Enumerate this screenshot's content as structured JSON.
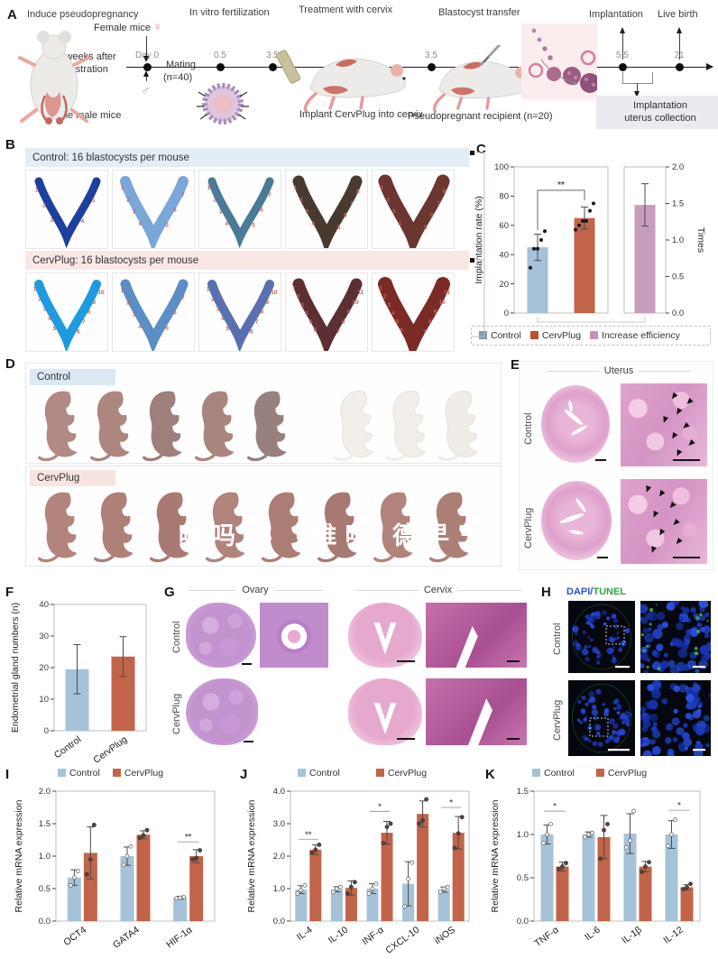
{
  "panels": {
    "a": "A",
    "b": "B",
    "c": "C",
    "d": "D",
    "e": "E",
    "f": "F",
    "g": "G",
    "h": "H",
    "i": "I",
    "j": "J",
    "k": "K"
  },
  "panel_a": {
    "stages": [
      "Induce pseudopregnancy",
      "In vitro fertilization",
      "Treatment with cervix",
      "Blastocyst transfer",
      "Implantation",
      "Live birth"
    ],
    "timepoints": [
      "Day 0",
      "0.5",
      "3.5",
      "3.5",
      "5.5",
      "21"
    ],
    "female_mice": "Female mice",
    "female_symbol": "♀",
    "male_symbol": "♂",
    "castration_line1": "2 weeks after",
    "castration_line2": "castration",
    "sterile_male": "Sterile male mice",
    "mating_line1": "Mating",
    "mating_line2": "(n=40)",
    "implant_caption": "Implant CervPlug into cervix",
    "recipient_caption": "Pseudopregnant recipient (n=20)",
    "collection_line1": "Implantation",
    "collection_line2": "uterus collection"
  },
  "panel_b": {
    "control_header": "Control: 16 blastocysts per mouse",
    "cervplug_header": "CervPlug: 16 blastocysts per mouse",
    "number_color": "#c0635a",
    "control_uteri": [
      {
        "color": "#1d3f9e",
        "width": 9,
        "count": 5
      },
      {
        "color": "#7aa7d8",
        "width": 12,
        "count": 7
      },
      {
        "color": "#4a7a96",
        "width": 9,
        "count": 7
      },
      {
        "color": "#493a30",
        "width": 13,
        "count": 8
      },
      {
        "color": "#6b3530",
        "width": 15,
        "count": 8
      }
    ],
    "cervplug_uteri": [
      {
        "color": "#1e9bdf",
        "width": 10,
        "count": 10
      },
      {
        "color": "#5b8ec4",
        "width": 11,
        "count": 7
      },
      {
        "color": "#5a6fb0",
        "width": 10,
        "count": 10
      },
      {
        "color": "#5c2f34",
        "width": 13,
        "count": 11
      },
      {
        "color": "#7c2a26",
        "width": 16,
        "count": 11
      }
    ]
  },
  "panel_d": {
    "control_label": "Control",
    "cervplug_label": "CervPlug",
    "watermark": "唯吗 5（唯吗 德早三",
    "control_pups": [
      "#b18a84",
      "#ac867f",
      "#9e7f7c",
      "#a8867f",
      "#97807e",
      "#f2eeea",
      "#f1ede9",
      "#f0ece8"
    ],
    "control_faded_count": 3,
    "cervplug_pups": [
      "#b2847c",
      "#ad8078",
      "#a87a73",
      "#b0837b",
      "#aa7d75",
      "#a77972",
      "#b1837b",
      "#ab7e76"
    ]
  },
  "panel_e": {
    "title": "Uterus",
    "control_label": "Control",
    "cervplug_label": "CervPlug"
  },
  "panel_g": {
    "ovary_title": "Ovary",
    "cervix_title": "Cervix",
    "control_label": "Control",
    "cervplug_label": "CervPlug"
  },
  "panel_h": {
    "dapi": "DAPI",
    "slash": "/",
    "tunel": "TUNEL",
    "dapi_color": "#2b50d8",
    "tunel_color": "#2fa742",
    "control_label": "Control",
    "cervplug_label": "CervPlug"
  },
  "chart_data": [
    {
      "id": "C",
      "type": "bar",
      "left": {
        "ylabel": "Implantation rate (%)",
        "ylim": [
          0,
          100
        ],
        "yticks": [
          0,
          20,
          40,
          60,
          80,
          100
        ],
        "ytick_labels": [
          "0",
          "20",
          "40",
          "60",
          "80",
          "100"
        ],
        "categories": [
          "Control",
          "CervPlug"
        ],
        "values": [
          45,
          65
        ],
        "errors": [
          9,
          7.5
        ],
        "dots": [
          [
            31,
            44,
            44,
            50,
            56
          ],
          [
            57,
            60,
            63,
            63,
            70,
            75
          ]
        ],
        "colors": [
          "#a6c2d8",
          "#c26449"
        ],
        "sig": {
          "text": "**",
          "y": 84,
          "drop1": 57,
          "drop2": 77
        }
      },
      "right": {
        "ylabel": "Times",
        "ylim": [
          0,
          2
        ],
        "yticks": [
          0,
          0.5,
          1,
          1.5,
          2
        ],
        "ytick_labels": [
          "0.0",
          "0.5",
          "1.0",
          "1.5",
          "2.0"
        ],
        "categories": [
          "Increase efficiency"
        ],
        "values": [
          1.48
        ],
        "errors": [
          0.29
        ],
        "colors": [
          "#c79dbe"
        ]
      },
      "legend": [
        {
          "label": "Control",
          "color": "#7d9cb5"
        },
        {
          "label": "CervPlug",
          "color": "#bb4f33"
        },
        {
          "label": "Increase efficiency",
          "color": "#c491b7"
        }
      ]
    },
    {
      "id": "F",
      "type": "bar",
      "ylabel": "Endometrial gland numbers (n)",
      "ylim": [
        0,
        40
      ],
      "yticks": [
        0,
        10,
        20,
        30,
        40
      ],
      "ytick_labels": [
        "0",
        "10",
        "20",
        "30",
        "40"
      ],
      "categories": [
        "Control",
        "CervPlug"
      ],
      "values": [
        19.5,
        23.5
      ],
      "errors": [
        7.8,
        6.3
      ],
      "dots": [
        [],
        []
      ],
      "colors": [
        "#a6c2d8",
        "#c26449"
      ]
    },
    {
      "id": "I",
      "type": "grouped-bar",
      "ylabel": "Relative mRNA expression",
      "ylim": [
        0,
        2
      ],
      "yticks": [
        0,
        0.5,
        1,
        1.5,
        2
      ],
      "ytick_labels": [
        "0.0",
        "0.5",
        "1.0",
        "1.5",
        "2.0"
      ],
      "categories": [
        "OCT4",
        "GATA4",
        "HIF-1α"
      ],
      "series": [
        {
          "name": "Control",
          "color": "#a6c2d8",
          "values": [
            0.67,
            1.0,
            0.36
          ],
          "errors": [
            0.12,
            0.14,
            0.02
          ],
          "dots": [
            [
              0.55,
              0.67,
              0.77
            ],
            [
              0.87,
              1.0,
              1.15
            ],
            [
              0.35,
              0.36,
              0.37
            ]
          ]
        },
        {
          "name": "CervPlug",
          "color": "#c26449",
          "values": [
            1.05,
            1.33,
            1.0
          ],
          "errors": [
            0.4,
            0.06,
            0.1
          ],
          "dots": [
            [
              0.72,
              0.95,
              1.48
            ],
            [
              1.28,
              1.32,
              1.4
            ],
            [
              0.95,
              0.97,
              1.09
            ]
          ]
        }
      ],
      "sig": [
        {
          "cat": 2,
          "text": "**",
          "y": 1.22
        }
      ]
    },
    {
      "id": "J",
      "type": "grouped-bar",
      "ylabel": "Relative mRNA expression",
      "ylim": [
        0,
        4
      ],
      "yticks": [
        0,
        1,
        2,
        3,
        4
      ],
      "ytick_labels": [
        "0.0",
        "1.0",
        "2.0",
        "3.0",
        "4.0"
      ],
      "categories": [
        "IL-4",
        "IL-10",
        "INF-α",
        "CXCL-10",
        "iNOS"
      ],
      "series": [
        {
          "name": "Control",
          "color": "#a6c2d8",
          "values": [
            0.97,
            0.98,
            1.0,
            1.15,
            0.97
          ],
          "errors": [
            0.12,
            0.08,
            0.15,
            0.68,
            0.08
          ],
          "dots": [
            [
              0.85,
              0.95,
              1.1
            ],
            [
              0.9,
              1.0,
              1.05
            ],
            [
              0.85,
              1.0,
              1.15
            ],
            [
              0.45,
              1.3,
              1.8
            ],
            [
              0.9,
              1.0,
              1.05
            ]
          ]
        },
        {
          "name": "CervPlug",
          "color": "#c26449",
          "values": [
            2.2,
            1.02,
            2.72,
            3.3,
            2.72
          ],
          "errors": [
            0.15,
            0.22,
            0.35,
            0.4,
            0.5
          ],
          "dots": [
            [
              2.1,
              2.2,
              2.35
            ],
            [
              0.85,
              1.05,
              1.2
            ],
            [
              2.4,
              2.9,
              3.0
            ],
            [
              3.0,
              3.1,
              3.75
            ],
            [
              2.25,
              2.7,
              3.2
            ]
          ]
        }
      ],
      "sig": [
        {
          "cat": 0,
          "text": "**",
          "y": 2.52
        },
        {
          "cat": 2,
          "text": "*",
          "y": 3.38
        },
        {
          "cat": 4,
          "text": "*",
          "y": 3.5
        }
      ]
    },
    {
      "id": "K",
      "type": "grouped-bar",
      "ylabel": "Relative mRNA expression",
      "ylim": [
        0,
        1.5
      ],
      "yticks": [
        0,
        0.5,
        1,
        1.5
      ],
      "ytick_labels": [
        "0.0",
        "0.5",
        "1.0",
        "1.5"
      ],
      "categories": [
        "TNF-α",
        "IL-6",
        "IL-1β",
        "IL-12"
      ],
      "series": [
        {
          "name": "Control",
          "color": "#a6c2d8",
          "values": [
            1.0,
            1.0,
            1.01,
            1.0
          ],
          "errors": [
            0.11,
            0.03,
            0.23,
            0.16
          ],
          "dots": [
            [
              0.9,
              1.0,
              1.12
            ],
            [
              0.97,
              1.0,
              1.02
            ],
            [
              0.85,
              0.93,
              1.27
            ],
            [
              0.87,
              1.0,
              1.17
            ]
          ]
        },
        {
          "name": "CervPlug",
          "color": "#c26449",
          "values": [
            0.63,
            0.97,
            0.63,
            0.39
          ],
          "errors": [
            0.05,
            0.25,
            0.06,
            0.03
          ],
          "dots": [
            [
              0.6,
              0.63,
              0.67
            ],
            [
              0.72,
              1.05,
              1.12
            ],
            [
              0.57,
              0.63,
              0.68
            ],
            [
              0.37,
              0.39,
              0.43
            ]
          ]
        }
      ],
      "sig": [
        {
          "cat": 0,
          "text": "*",
          "y": 1.27
        },
        {
          "cat": 3,
          "text": "*",
          "y": 1.28
        }
      ]
    }
  ]
}
